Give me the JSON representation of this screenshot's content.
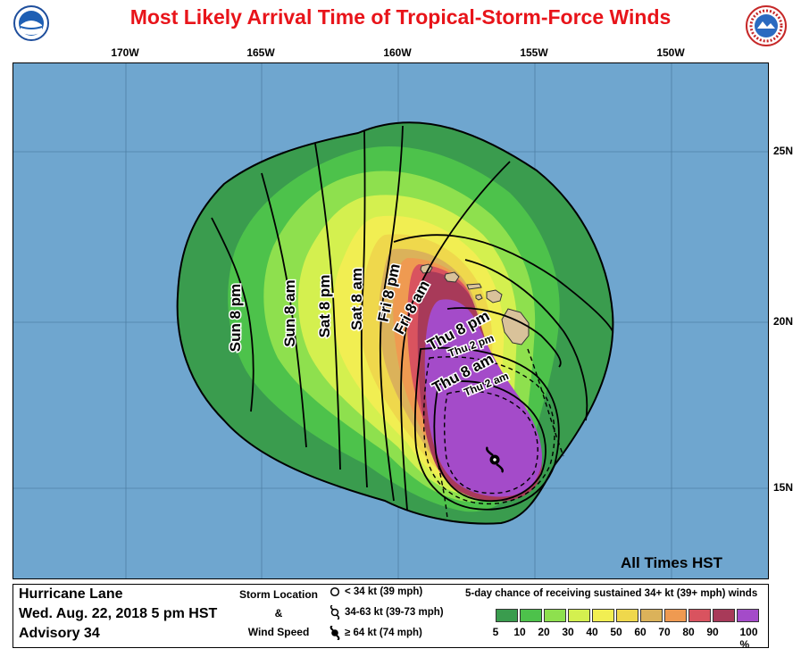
{
  "title": "Most Likely Arrival Time of Tropical-Storm-Force Winds",
  "colors": {
    "title": "#e8141a",
    "ocean": "#6fa6cf",
    "land": "#d9c29a",
    "outline": "#000000"
  },
  "logos": {
    "left": "NOAA",
    "right": "NATIONAL WEATHER SERVICE"
  },
  "longitude_labels": [
    "170W",
    "165W",
    "160W",
    "155W",
    "150W"
  ],
  "latitude_labels": [
    "25N",
    "20N",
    "15N"
  ],
  "time_labels": [
    "Sun 8 pm",
    "Sun 8 am",
    "Sat 8 pm",
    "Sat 8 am",
    "Fri 8 pm",
    "Fri 8 am",
    "Thu 8 pm",
    "Thu 2 pm",
    "Thu 8 am",
    "Thu 2 am"
  ],
  "all_times": "All Times HST",
  "storm": {
    "name": "Hurricane Lane",
    "datetime": "Wed. Aug. 22, 2018  5 pm HST",
    "advisory": "Advisory 34"
  },
  "storm_legend": {
    "heading_1": "Storm Location",
    "amp": "&",
    "heading_2": "Wind Speed",
    "entries": [
      "< 34 kt (39 mph)",
      "34-63 kt (39-73 mph)",
      "≥ 64 kt (74 mph)"
    ]
  },
  "probability_legend": {
    "title": "5-day chance of receiving sustained 34+ kt (39+ mph) winds",
    "ticks": [
      "5",
      "10",
      "20",
      "30",
      "40",
      "50",
      "60",
      "70",
      "80",
      "90",
      "100 %"
    ],
    "colors": [
      "#3a9c4e",
      "#4dc24b",
      "#8ee04e",
      "#d4f04f",
      "#f1ee52",
      "#efd84c",
      "#dbb25a",
      "#ef9a51",
      "#d9535f",
      "#a83a59",
      "#a44bc9"
    ]
  }
}
